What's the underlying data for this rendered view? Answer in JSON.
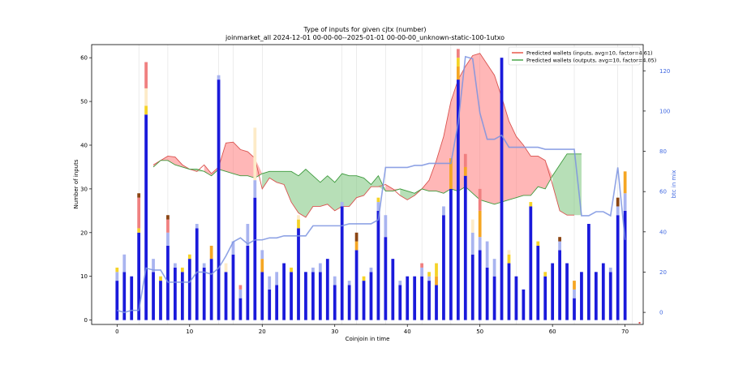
{
  "chart_data": {
    "type": "bar",
    "title": "Type of inputs for given cjtx (number)",
    "subtitle": "joinmarket_all 2024-12-01 00-00-00--2025-01-01 00-00-00_unknown-static-100-1utxo",
    "xlabel": "Coinjoin in time",
    "ylabel": "Number of inputs",
    "ylabel_right": "btc in mix",
    "xlim": [
      -3.5,
      72.5
    ],
    "ylim": [
      -1,
      63
    ],
    "ylim_right": [
      -6,
      133
    ],
    "xticks": [
      0,
      10,
      20,
      30,
      40,
      50,
      60,
      70
    ],
    "yticks": [
      0,
      10,
      20,
      30,
      40,
      50,
      60
    ],
    "yticks_right": [
      0,
      20,
      40,
      60,
      80,
      100,
      120
    ],
    "vertical_grid_x": [
      3,
      7,
      14,
      16,
      20,
      31,
      33,
      37,
      42,
      46,
      50,
      55,
      63,
      69,
      71
    ],
    "legend": {
      "position": "top-right",
      "entries": [
        {
          "label": "Predicted wallets (inputs, avg=10, factor=4.61)",
          "color": "#e8594a"
        },
        {
          "label": "Predicted wallets (outputs, avg=10, factor=4.05)",
          "color": "#4aa84a"
        }
      ]
    },
    "colors": {
      "base": "#1a1adb",
      "light_blue": "#a9b4f0",
      "yellow": "#f5d327",
      "orange": "#f5a623",
      "red": "#f08080",
      "brown": "#8b4513",
      "pale": "#fdebc8",
      "inputs_line": "#d9534f",
      "inputs_fill": "#ff7b7b",
      "outputs_line": "#3c9a3c",
      "outputs_fill": "#7cc47c",
      "btc_line": "#7b93e0"
    },
    "bars": [
      {
        "x": 0,
        "base": 9,
        "segs": [
          [
            "light_blue",
            2
          ],
          [
            "yellow",
            1
          ]
        ]
      },
      {
        "x": 1,
        "base": 11,
        "segs": [
          [
            "light_blue",
            4
          ]
        ]
      },
      {
        "x": 2,
        "base": 10,
        "segs": []
      },
      {
        "x": 3,
        "base": 20,
        "segs": [
          [
            "yellow",
            1
          ],
          [
            "red",
            7
          ],
          [
            "brown",
            1
          ]
        ]
      },
      {
        "x": 4,
        "base": 47,
        "segs": [
          [
            "yellow",
            2
          ],
          [
            "pale",
            4
          ],
          [
            "red",
            6
          ]
        ]
      },
      {
        "x": 5,
        "base": 11,
        "segs": [
          [
            "light_blue",
            3
          ]
        ]
      },
      {
        "x": 6,
        "base": 9,
        "segs": [
          [
            "yellow",
            1
          ]
        ]
      },
      {
        "x": 7,
        "base": 17,
        "segs": [
          [
            "light_blue",
            3
          ],
          [
            "red",
            3
          ],
          [
            "brown",
            1
          ]
        ]
      },
      {
        "x": 8,
        "base": 12,
        "segs": [
          [
            "light_blue",
            1
          ]
        ]
      },
      {
        "x": 9,
        "base": 11,
        "segs": [
          [
            "yellow",
            1
          ]
        ]
      },
      {
        "x": 10,
        "base": 14,
        "segs": [
          [
            "yellow",
            1
          ]
        ]
      },
      {
        "x": 11,
        "base": 21,
        "segs": [
          [
            "light_blue",
            1
          ]
        ]
      },
      {
        "x": 12,
        "base": 12,
        "segs": [
          [
            "light_blue",
            1
          ]
        ]
      },
      {
        "x": 13,
        "base": 14,
        "segs": [
          [
            "orange",
            3
          ]
        ]
      },
      {
        "x": 14,
        "base": 55,
        "segs": [
          [
            "light_blue",
            1
          ]
        ]
      },
      {
        "x": 15,
        "base": 11,
        "segs": [
          [
            "pale",
            2
          ]
        ]
      },
      {
        "x": 16,
        "base": 15,
        "segs": [
          [
            "light_blue",
            3
          ]
        ]
      },
      {
        "x": 17,
        "base": 5,
        "segs": [
          [
            "light_blue",
            2
          ],
          [
            "red",
            1
          ]
        ]
      },
      {
        "x": 18,
        "base": 17,
        "segs": [
          [
            "light_blue",
            5
          ]
        ]
      },
      {
        "x": 19,
        "base": 28,
        "segs": [
          [
            "light_blue",
            4
          ],
          [
            "pale",
            12
          ]
        ]
      },
      {
        "x": 20,
        "base": 11,
        "segs": [
          [
            "orange",
            3
          ],
          [
            "light_blue",
            2
          ]
        ]
      },
      {
        "x": 21,
        "base": 7,
        "segs": [
          [
            "light_blue",
            3
          ]
        ]
      },
      {
        "x": 22,
        "base": 8,
        "segs": [
          [
            "light_blue",
            3
          ]
        ]
      },
      {
        "x": 23,
        "base": 13,
        "segs": []
      },
      {
        "x": 24,
        "base": 11,
        "segs": [
          [
            "yellow",
            1
          ]
        ]
      },
      {
        "x": 25,
        "base": 21,
        "segs": [
          [
            "yellow",
            2
          ],
          [
            "pale",
            1
          ]
        ]
      },
      {
        "x": 26,
        "base": 11,
        "segs": []
      },
      {
        "x": 27,
        "base": 11,
        "segs": [
          [
            "light_blue",
            1
          ]
        ]
      },
      {
        "x": 28,
        "base": 11,
        "segs": [
          [
            "light_blue",
            2
          ]
        ]
      },
      {
        "x": 29,
        "base": 14,
        "segs": []
      },
      {
        "x": 30,
        "base": 8,
        "segs": [
          [
            "light_blue",
            2
          ]
        ]
      },
      {
        "x": 31,
        "base": 26,
        "segs": [
          [
            "light_blue",
            1
          ]
        ]
      },
      {
        "x": 32,
        "base": 8,
        "segs": [
          [
            "light_blue",
            1
          ]
        ]
      },
      {
        "x": 33,
        "base": 16,
        "segs": [
          [
            "orange",
            2
          ],
          [
            "brown",
            2
          ]
        ]
      },
      {
        "x": 34,
        "base": 9,
        "segs": [
          [
            "yellow",
            1
          ]
        ]
      },
      {
        "x": 35,
        "base": 11,
        "segs": [
          [
            "light_blue",
            1
          ]
        ]
      },
      {
        "x": 36,
        "base": 25,
        "segs": [
          [
            "light_blue",
            2
          ],
          [
            "yellow",
            1
          ]
        ]
      },
      {
        "x": 37,
        "base": 19,
        "segs": [
          [
            "light_blue",
            5
          ]
        ]
      },
      {
        "x": 38,
        "base": 14,
        "segs": []
      },
      {
        "x": 39,
        "base": 8,
        "segs": [
          [
            "light_blue",
            1
          ]
        ]
      },
      {
        "x": 40,
        "base": 10,
        "segs": []
      },
      {
        "x": 41,
        "base": 10,
        "segs": []
      },
      {
        "x": 42,
        "base": 10,
        "segs": [
          [
            "light_blue",
            2
          ],
          [
            "red",
            1
          ]
        ]
      },
      {
        "x": 43,
        "base": 9,
        "segs": [
          [
            "light_blue",
            1
          ],
          [
            "yellow",
            1
          ]
        ]
      },
      {
        "x": 44,
        "base": 8,
        "segs": [
          [
            "orange",
            2
          ],
          [
            "yellow",
            3
          ]
        ]
      },
      {
        "x": 45,
        "base": 24,
        "segs": [
          [
            "light_blue",
            2
          ]
        ]
      },
      {
        "x": 46,
        "base": 30,
        "segs": [
          [
            "orange",
            7
          ]
        ]
      },
      {
        "x": 47,
        "base": 55,
        "segs": [
          [
            "orange",
            3
          ],
          [
            "yellow",
            2
          ],
          [
            "red",
            2
          ]
        ]
      },
      {
        "x": 48,
        "base": 33,
        "segs": [
          [
            "orange",
            2
          ],
          [
            "red",
            3
          ]
        ]
      },
      {
        "x": 49,
        "base": 15,
        "segs": [
          [
            "light_blue",
            5
          ],
          [
            "pale",
            3
          ]
        ]
      },
      {
        "x": 50,
        "base": 16,
        "segs": [
          [
            "light_blue",
            3
          ],
          [
            "orange",
            6
          ],
          [
            "red",
            5
          ]
        ]
      },
      {
        "x": 51,
        "base": 12,
        "segs": [
          [
            "light_blue",
            6
          ]
        ]
      },
      {
        "x": 52,
        "base": 10,
        "segs": [
          [
            "light_blue",
            4
          ]
        ]
      },
      {
        "x": 53,
        "base": 60,
        "segs": []
      },
      {
        "x": 54,
        "base": 13,
        "segs": [
          [
            "yellow",
            2
          ],
          [
            "pale",
            1
          ]
        ]
      },
      {
        "x": 55,
        "base": 10,
        "segs": []
      },
      {
        "x": 56,
        "base": 7,
        "segs": []
      },
      {
        "x": 57,
        "base": 26,
        "segs": [
          [
            "yellow",
            1
          ]
        ]
      },
      {
        "x": 58,
        "base": 17,
        "segs": [
          [
            "yellow",
            1
          ]
        ]
      },
      {
        "x": 59,
        "base": 10,
        "segs": [
          [
            "yellow",
            1
          ]
        ]
      },
      {
        "x": 60,
        "base": 13,
        "segs": []
      },
      {
        "x": 61,
        "base": 16,
        "segs": [
          [
            "light_blue",
            2
          ],
          [
            "brown",
            1
          ]
        ]
      },
      {
        "x": 62,
        "base": 13,
        "segs": []
      },
      {
        "x": 63,
        "base": 5,
        "segs": [
          [
            "light_blue",
            2
          ],
          [
            "orange",
            2
          ]
        ]
      },
      {
        "x": 64,
        "base": 11,
        "segs": []
      },
      {
        "x": 65,
        "base": 22,
        "segs": []
      },
      {
        "x": 66,
        "base": 11,
        "segs": []
      },
      {
        "x": 67,
        "base": 13,
        "segs": []
      },
      {
        "x": 68,
        "base": 11,
        "segs": [
          [
            "light_blue",
            1
          ]
        ]
      },
      {
        "x": 69,
        "base": 24,
        "segs": [
          [
            "light_blue",
            2
          ],
          [
            "brown",
            2
          ]
        ]
      },
      {
        "x": 70,
        "base": 25,
        "segs": [
          [
            "light_blue",
            4
          ],
          [
            "orange",
            5
          ]
        ]
      }
    ],
    "inputs_wallets": {
      "x": [
        5,
        6,
        7,
        8,
        9,
        10,
        11,
        12,
        13,
        14,
        15,
        16,
        17,
        18,
        19,
        20,
        21,
        22,
        23,
        24,
        25,
        26,
        27,
        28,
        29,
        30,
        31,
        32,
        33,
        34,
        35,
        36,
        37,
        38,
        39,
        40,
        41,
        42,
        43,
        44,
        45,
        46,
        47,
        48,
        49,
        50,
        51,
        52,
        53,
        54,
        55,
        56,
        57,
        58,
        59,
        60,
        61,
        62,
        63
      ],
      "y": [
        35.5,
        36.5,
        37.5,
        37.3,
        35.5,
        34.5,
        34,
        35.5,
        33.5,
        35,
        40.5,
        40.7,
        39,
        38.5,
        37,
        30,
        32.5,
        31.5,
        31,
        27,
        24.5,
        23.5,
        26,
        26,
        26.5,
        25,
        26,
        26,
        28,
        28.5,
        30.5,
        30.5,
        31,
        30,
        28.5,
        27.5,
        28.5,
        30,
        32,
        36.5,
        42,
        50,
        55,
        58,
        60.5,
        61,
        58.5,
        56,
        51,
        45.5,
        42,
        40,
        37.5,
        37.5,
        36.5,
        31,
        25,
        24,
        24
      ]
    },
    "outputs_wallets": {
      "x": [
        5,
        6,
        7,
        8,
        9,
        10,
        11,
        12,
        13,
        14,
        15,
        16,
        17,
        18,
        19,
        20,
        21,
        22,
        23,
        24,
        25,
        26,
        27,
        28,
        29,
        30,
        31,
        32,
        33,
        34,
        35,
        36,
        37,
        38,
        39,
        40,
        41,
        42,
        43,
        44,
        45,
        46,
        47,
        48,
        49,
        50,
        51,
        52,
        53,
        54,
        55,
        56,
        57,
        58,
        59,
        60,
        61,
        62,
        63,
        64
      ],
      "y": [
        35,
        36.5,
        36.5,
        35.5,
        35,
        34.5,
        34.5,
        34,
        33,
        34.5,
        34,
        33.5,
        33,
        33,
        32.5,
        33.5,
        34,
        34,
        34,
        34,
        33,
        34.5,
        33,
        31.5,
        33,
        31.5,
        33.5,
        33,
        33,
        32.5,
        31,
        33,
        29.5,
        29.5,
        30,
        29.5,
        29,
        30,
        29.5,
        29.5,
        29,
        30,
        29.5,
        30.5,
        29,
        27.5,
        27,
        26.5,
        27,
        27.5,
        28,
        28.5,
        28.5,
        30.5,
        30,
        33,
        35.5,
        38,
        38,
        38
      ]
    },
    "btc_in_mix": {
      "x": [
        0,
        1,
        2,
        3,
        4,
        5,
        6,
        7,
        8,
        9,
        10,
        11,
        12,
        13,
        14,
        15,
        16,
        17,
        18,
        19,
        20,
        21,
        22,
        23,
        24,
        25,
        26,
        27,
        28,
        29,
        30,
        31,
        32,
        33,
        34,
        35,
        36,
        37,
        38,
        39,
        40,
        41,
        42,
        43,
        44,
        45,
        46,
        47,
        48,
        49,
        50,
        51,
        52,
        53,
        54,
        55,
        56,
        57,
        58,
        59,
        60,
        61,
        62,
        63,
        64,
        65,
        66,
        67,
        68,
        69,
        70
      ],
      "y": [
        1,
        0,
        1,
        1,
        22,
        21,
        21,
        15,
        15,
        15,
        15,
        20,
        20,
        19,
        22,
        28,
        35,
        37,
        34,
        36,
        36,
        37,
        37,
        38,
        38,
        38,
        38,
        43,
        43,
        43,
        43,
        43,
        44,
        44,
        44,
        44,
        46,
        72,
        72,
        72,
        72,
        73,
        73,
        74,
        74,
        74,
        74,
        94,
        127,
        126,
        99,
        86,
        86,
        88,
        82,
        82,
        82,
        82,
        82,
        81,
        81,
        81,
        81,
        81,
        48,
        48,
        50,
        50,
        48,
        72,
        36
      ]
    }
  }
}
